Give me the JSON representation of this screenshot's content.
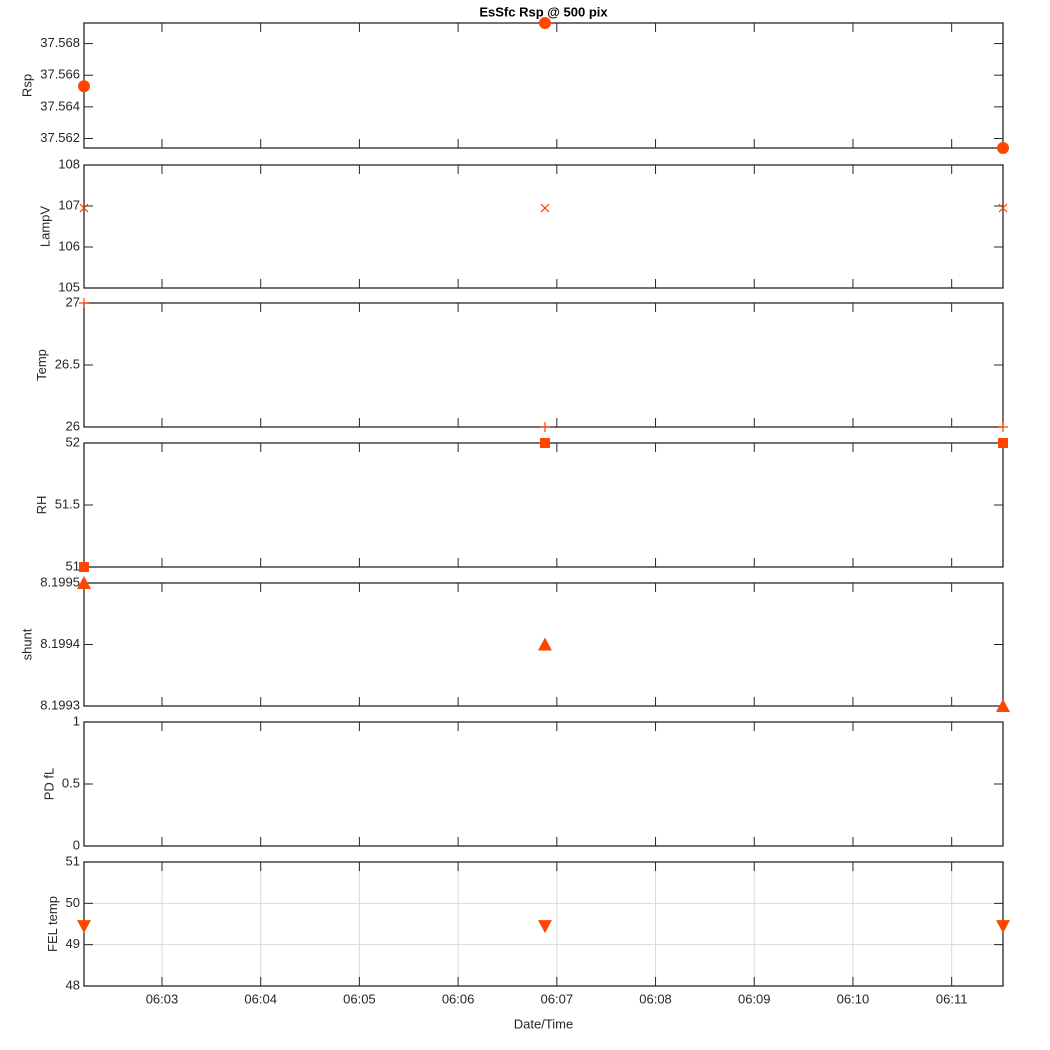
{
  "chart_data": [
    {
      "type": "scatter",
      "title": "EsSfc Rsp @ 500 pix",
      "ylabel": "Rsp",
      "marker": "circle",
      "color": "#ff4500",
      "x": [
        2.21,
        6.88,
        11.52
      ],
      "values": [
        37.5653,
        37.5693,
        37.5614
      ],
      "ylim": [
        37.5614,
        37.5693
      ],
      "yticks": [
        37.562,
        37.564,
        37.566,
        37.568
      ],
      "grid": false
    },
    {
      "type": "scatter",
      "ylabel": "LampV",
      "marker": "x",
      "color": "#ff4500",
      "x": [
        2.21,
        6.88,
        11.52
      ],
      "values": [
        106.95,
        106.95,
        106.95
      ],
      "ylim": [
        105,
        108
      ],
      "yticks": [
        105,
        106,
        107,
        108
      ],
      "grid": false
    },
    {
      "type": "scatter",
      "ylabel": "Temp",
      "marker": "plus",
      "color": "#ff4500",
      "x": [
        2.21,
        6.88,
        11.52
      ],
      "values": [
        27,
        26,
        26
      ],
      "ylim": [
        26,
        27
      ],
      "yticks": [
        26,
        26.5,
        27
      ],
      "grid": false
    },
    {
      "type": "scatter",
      "ylabel": "RH",
      "marker": "square",
      "color": "#ff4500",
      "x": [
        2.21,
        6.88,
        11.52
      ],
      "values": [
        51,
        52,
        52
      ],
      "ylim": [
        51,
        52
      ],
      "yticks": [
        51,
        51.5,
        52
      ],
      "grid": false
    },
    {
      "type": "scatter",
      "ylabel": "shunt",
      "marker": "triangle-up",
      "color": "#ff4500",
      "x": [
        2.21,
        6.88,
        11.52
      ],
      "values": [
        8.1995,
        8.1994,
        8.1993
      ],
      "ylim": [
        8.1993,
        8.1995
      ],
      "yticks": [
        8.1993,
        8.1994,
        8.1995
      ],
      "grid": false
    },
    {
      "type": "scatter",
      "ylabel": "PD fL",
      "marker": "none",
      "color": "#ff4500",
      "x": [],
      "values": [],
      "ylim": [
        0,
        1
      ],
      "yticks": [
        0,
        0.5,
        1
      ],
      "grid": false
    },
    {
      "type": "scatter",
      "ylabel": "FEL temp",
      "xlabel": "Date/Time",
      "marker": "triangle-down",
      "color": "#ff4500",
      "x": [
        2.21,
        6.88,
        11.52
      ],
      "values": [
        49.45,
        49.45,
        49.45
      ],
      "ylim": [
        48,
        51
      ],
      "yticks": [
        48,
        49,
        50,
        51
      ],
      "grid": true,
      "xlim": [
        2.21,
        11.52
      ],
      "xticks": [
        {
          "value": 3,
          "label": "06:03"
        },
        {
          "value": 4,
          "label": "06:04"
        },
        {
          "value": 5,
          "label": "06:05"
        },
        {
          "value": 6,
          "label": "06:06"
        },
        {
          "value": 7,
          "label": "06:07"
        },
        {
          "value": 8,
          "label": "06:08"
        },
        {
          "value": 9,
          "label": "06:09"
        },
        {
          "value": 10,
          "label": "06:10"
        },
        {
          "value": 11,
          "label": "06:11"
        }
      ]
    }
  ]
}
